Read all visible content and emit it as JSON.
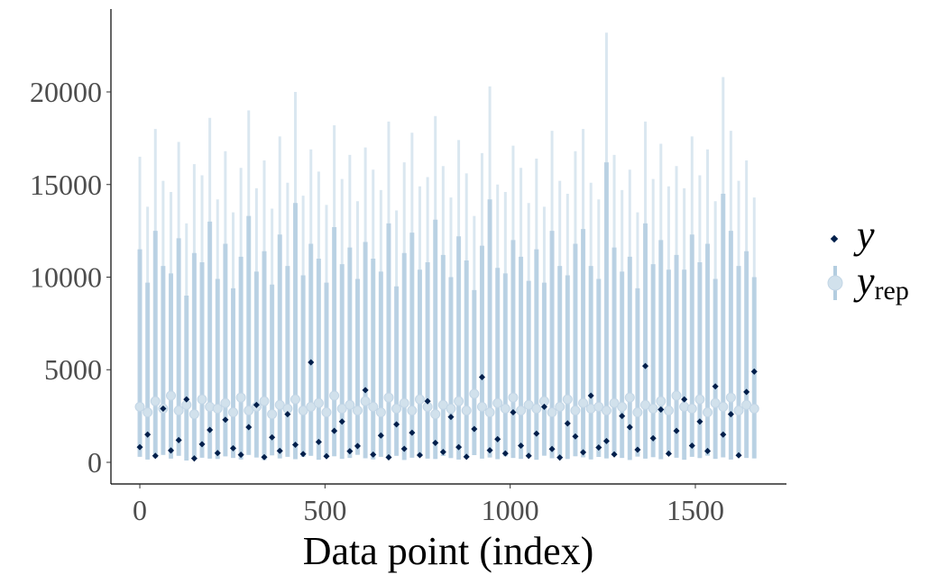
{
  "chart_data": {
    "type": "intervals",
    "x_label": "Data point (index)",
    "x": [
      0,
      21,
      42,
      63,
      84,
      105,
      126,
      147,
      168,
      189,
      210,
      231,
      252,
      273,
      294,
      315,
      336,
      357,
      378,
      399,
      420,
      441,
      462,
      483,
      504,
      525,
      546,
      567,
      588,
      609,
      630,
      651,
      672,
      693,
      714,
      735,
      756,
      777,
      798,
      819,
      840,
      861,
      882,
      903,
      924,
      945,
      966,
      987,
      1008,
      1029,
      1050,
      1071,
      1092,
      1113,
      1134,
      1155,
      1176,
      1197,
      1218,
      1239,
      1260,
      1281,
      1302,
      1323,
      1344,
      1365,
      1386,
      1407,
      1428,
      1449,
      1470,
      1491,
      1512,
      1533,
      1554,
      1575,
      1596,
      1617,
      1638,
      1659
    ],
    "series": [
      {
        "name": "y",
        "color": "#011f4b",
        "values": [
          820,
          1500,
          350,
          2900,
          640,
          1200,
          3400,
          210,
          980,
          1750,
          500,
          2300,
          760,
          410,
          1900,
          3100,
          280,
          1350,
          620,
          2600,
          950,
          450,
          5400,
          1100,
          330,
          1700,
          2200,
          600,
          880,
          3900,
          420,
          1450,
          270,
          2050,
          730,
          1600,
          390,
          3300,
          1050,
          560,
          2450,
          820,
          300,
          1800,
          4600,
          650,
          1250,
          480,
          2700,
          900,
          350,
          1550,
          3000,
          720,
          260,
          2100,
          1400,
          540,
          3600,
          800,
          1150,
          430,
          2500,
          1900,
          680,
          5200,
          1300,
          2850,
          470,
          1700,
          3400,
          900,
          2200,
          610,
          4100,
          1500,
          2600,
          380,
          3800,
          4900
        ]
      },
      {
        "name": "y",
        "subscript": "rep",
        "color": "#d1e1ec",
        "interval_color": "#b3cde0",
        "values": [
          3000,
          2700,
          3300,
          2900,
          3600,
          2800,
          3100,
          2600,
          3400,
          3000,
          2900,
          3200,
          2700,
          3500,
          2800,
          3000,
          3300,
          2600,
          3100,
          2900,
          3400,
          2800,
          3000,
          3200,
          2700,
          3600,
          2900,
          3100,
          2800,
          3300,
          3000,
          2700,
          3500,
          2900,
          3200,
          2800,
          3400,
          3000,
          2600,
          3100,
          2900,
          3300,
          2800,
          3700,
          3000,
          2700,
          3200,
          2900,
          3500,
          2800,
          3100,
          2900,
          3300,
          2700,
          3000,
          3400,
          2800,
          3200,
          2900,
          3000,
          2800,
          3200,
          3000,
          3500,
          2700,
          3100,
          2900,
          3300,
          2800,
          3600,
          3000,
          2900,
          3400,
          2700,
          3200,
          3000,
          3500,
          2800,
          3100,
          2900
        ],
        "lower": [
          300,
          150,
          250,
          400,
          200,
          350,
          100,
          300,
          250,
          200,
          180,
          320,
          240,
          150,
          400,
          260,
          120,
          380,
          210,
          300,
          170,
          290,
          350,
          140,
          260,
          330,
          190,
          240,
          410,
          220,
          160,
          300,
          270,
          350,
          130,
          250,
          310,
          200,
          180,
          340,
          230,
          150,
          280,
          390,
          200,
          260,
          170,
          320,
          240,
          190,
          300,
          140,
          360,
          220,
          250,
          180,
          330,
          270,
          160,
          290,
          210,
          350,
          240,
          130,
          310,
          200,
          280,
          170,
          390,
          250,
          140,
          300,
          230,
          360,
          190,
          270,
          150,
          320,
          240,
          210
        ],
        "inner_upper": [
          11500,
          9700,
          12500,
          10600,
          10200,
          12100,
          9000,
          11300,
          10800,
          13000,
          9900,
          11800,
          9400,
          11100,
          13300,
          10300,
          11400,
          9600,
          12300,
          10600,
          14000,
          10100,
          11800,
          11000,
          9700,
          12700,
          10700,
          11600,
          9900,
          11900,
          11000,
          10300,
          12900,
          9500,
          11300,
          12400,
          10400,
          10800,
          13100,
          11200,
          10000,
          12200,
          10900,
          9300,
          11700,
          14200,
          10500,
          10200,
          12000,
          11100,
          9800,
          11500,
          9700,
          12500,
          10600,
          10100,
          11800,
          12600,
          10600,
          9900,
          16200,
          11600,
          10300,
          11100,
          9400,
          12900,
          10700,
          12000,
          10400,
          11200,
          10400,
          12300,
          10800,
          11800,
          9900,
          14500,
          12500,
          10600,
          11400,
          10000
        ],
        "upper": [
          16500,
          13800,
          18000,
          15200,
          14600,
          17300,
          12900,
          16100,
          15500,
          18600,
          14200,
          16800,
          13500,
          15900,
          19000,
          14800,
          16300,
          13700,
          17600,
          15100,
          20000,
          14400,
          16900,
          15700,
          13900,
          18200,
          15300,
          16600,
          14100,
          17000,
          15800,
          14700,
          18400,
          13600,
          16200,
          17800,
          14900,
          15400,
          18700,
          16000,
          14300,
          17400,
          15600,
          13300,
          16700,
          20300,
          15000,
          14600,
          17100,
          15900,
          14000,
          16400,
          13800,
          17900,
          15200,
          14500,
          16800,
          18000,
          15100,
          14200,
          23200,
          16600,
          14700,
          15800,
          13500,
          18400,
          15300,
          17200,
          14900,
          16000,
          14800,
          17600,
          15500,
          16900,
          14100,
          20800,
          17900,
          15200,
          16300,
          14300
        ]
      }
    ],
    "xlim": [
      -78,
      1746
    ],
    "ylim": [
      -1168,
      24477
    ],
    "xticks": [
      0,
      500,
      1000,
      1500
    ],
    "yticks": [
      0,
      5000,
      10000,
      15000,
      20000
    ],
    "grid": false
  }
}
